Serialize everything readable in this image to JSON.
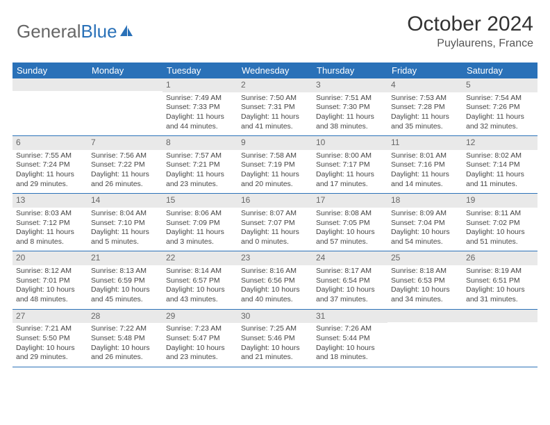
{
  "logo": {
    "text1": "General",
    "text2": "Blue"
  },
  "title": {
    "month": "October 2024",
    "location": "Puylaurens, France"
  },
  "weekdays": [
    "Sunday",
    "Monday",
    "Tuesday",
    "Wednesday",
    "Thursday",
    "Friday",
    "Saturday"
  ],
  "colors": {
    "header_bg": "#2a71b8",
    "daynum_bg": "#e9e9e9"
  },
  "weeks": [
    [
      null,
      null,
      {
        "n": "1",
        "sr": "7:49 AM",
        "ss": "7:33 PM",
        "dl": "11 hours and 44 minutes."
      },
      {
        "n": "2",
        "sr": "7:50 AM",
        "ss": "7:31 PM",
        "dl": "11 hours and 41 minutes."
      },
      {
        "n": "3",
        "sr": "7:51 AM",
        "ss": "7:30 PM",
        "dl": "11 hours and 38 minutes."
      },
      {
        "n": "4",
        "sr": "7:53 AM",
        "ss": "7:28 PM",
        "dl": "11 hours and 35 minutes."
      },
      {
        "n": "5",
        "sr": "7:54 AM",
        "ss": "7:26 PM",
        "dl": "11 hours and 32 minutes."
      }
    ],
    [
      {
        "n": "6",
        "sr": "7:55 AM",
        "ss": "7:24 PM",
        "dl": "11 hours and 29 minutes."
      },
      {
        "n": "7",
        "sr": "7:56 AM",
        "ss": "7:22 PM",
        "dl": "11 hours and 26 minutes."
      },
      {
        "n": "8",
        "sr": "7:57 AM",
        "ss": "7:21 PM",
        "dl": "11 hours and 23 minutes."
      },
      {
        "n": "9",
        "sr": "7:58 AM",
        "ss": "7:19 PM",
        "dl": "11 hours and 20 minutes."
      },
      {
        "n": "10",
        "sr": "8:00 AM",
        "ss": "7:17 PM",
        "dl": "11 hours and 17 minutes."
      },
      {
        "n": "11",
        "sr": "8:01 AM",
        "ss": "7:16 PM",
        "dl": "11 hours and 14 minutes."
      },
      {
        "n": "12",
        "sr": "8:02 AM",
        "ss": "7:14 PM",
        "dl": "11 hours and 11 minutes."
      }
    ],
    [
      {
        "n": "13",
        "sr": "8:03 AM",
        "ss": "7:12 PM",
        "dl": "11 hours and 8 minutes."
      },
      {
        "n": "14",
        "sr": "8:04 AM",
        "ss": "7:10 PM",
        "dl": "11 hours and 5 minutes."
      },
      {
        "n": "15",
        "sr": "8:06 AM",
        "ss": "7:09 PM",
        "dl": "11 hours and 3 minutes."
      },
      {
        "n": "16",
        "sr": "8:07 AM",
        "ss": "7:07 PM",
        "dl": "11 hours and 0 minutes."
      },
      {
        "n": "17",
        "sr": "8:08 AM",
        "ss": "7:05 PM",
        "dl": "10 hours and 57 minutes."
      },
      {
        "n": "18",
        "sr": "8:09 AM",
        "ss": "7:04 PM",
        "dl": "10 hours and 54 minutes."
      },
      {
        "n": "19",
        "sr": "8:11 AM",
        "ss": "7:02 PM",
        "dl": "10 hours and 51 minutes."
      }
    ],
    [
      {
        "n": "20",
        "sr": "8:12 AM",
        "ss": "7:01 PM",
        "dl": "10 hours and 48 minutes."
      },
      {
        "n": "21",
        "sr": "8:13 AM",
        "ss": "6:59 PM",
        "dl": "10 hours and 45 minutes."
      },
      {
        "n": "22",
        "sr": "8:14 AM",
        "ss": "6:57 PM",
        "dl": "10 hours and 43 minutes."
      },
      {
        "n": "23",
        "sr": "8:16 AM",
        "ss": "6:56 PM",
        "dl": "10 hours and 40 minutes."
      },
      {
        "n": "24",
        "sr": "8:17 AM",
        "ss": "6:54 PM",
        "dl": "10 hours and 37 minutes."
      },
      {
        "n": "25",
        "sr": "8:18 AM",
        "ss": "6:53 PM",
        "dl": "10 hours and 34 minutes."
      },
      {
        "n": "26",
        "sr": "8:19 AM",
        "ss": "6:51 PM",
        "dl": "10 hours and 31 minutes."
      }
    ],
    [
      {
        "n": "27",
        "sr": "7:21 AM",
        "ss": "5:50 PM",
        "dl": "10 hours and 29 minutes."
      },
      {
        "n": "28",
        "sr": "7:22 AM",
        "ss": "5:48 PM",
        "dl": "10 hours and 26 minutes."
      },
      {
        "n": "29",
        "sr": "7:23 AM",
        "ss": "5:47 PM",
        "dl": "10 hours and 23 minutes."
      },
      {
        "n": "30",
        "sr": "7:25 AM",
        "ss": "5:46 PM",
        "dl": "10 hours and 21 minutes."
      },
      {
        "n": "31",
        "sr": "7:26 AM",
        "ss": "5:44 PM",
        "dl": "10 hours and 18 minutes."
      },
      null,
      null
    ]
  ]
}
